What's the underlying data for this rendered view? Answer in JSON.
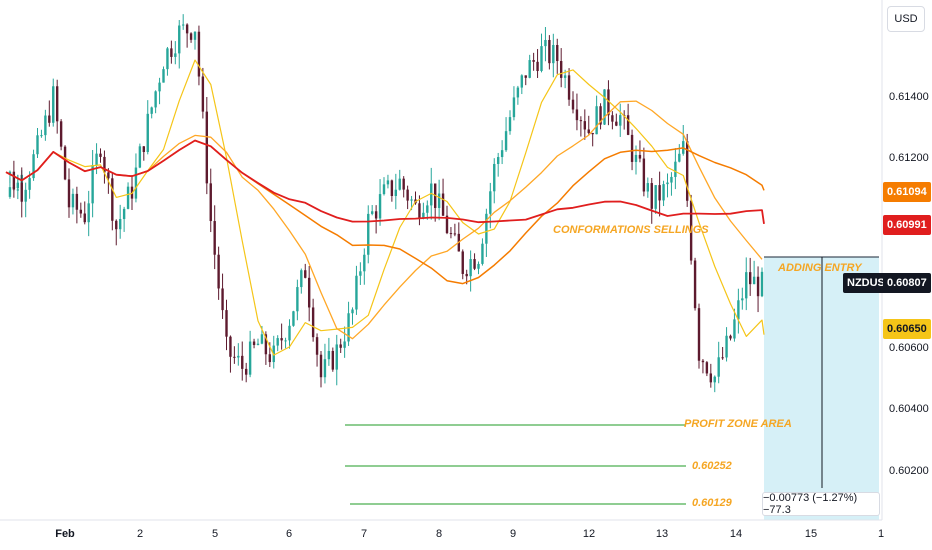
{
  "currency": "USD",
  "y_ticks": [
    "0.61400",
    "0.61200",
    "0.60600",
    "0.60400",
    "0.60200"
  ],
  "x_ticks": [
    "Feb",
    "2",
    "5",
    "6",
    "7",
    "8",
    "9",
    "12",
    "13",
    "14",
    "15",
    "1"
  ],
  "price_tags": {
    "ma_orange": "0.61094",
    "ma_red": "0.60991",
    "current": "0.60807",
    "ma_yellow": "0.60650",
    "symbol": "NZDUSD"
  },
  "annotations": {
    "conformations": "CONFORMATIONS SELLINGS",
    "adding_entry": "ADDING ENTRY",
    "profit_zone": "PROFIT ZONE AREA",
    "target1": "0.60252",
    "target2": "0.60129"
  },
  "position_stats": "−0.00773 (−1.27%) −77.3",
  "colors": {
    "up": "#26a69a",
    "down": "#5d1a2e",
    "ma_yellow": "#f5c518",
    "ma_orange": "#f57c00",
    "ma_red": "#e01e1e",
    "ma_light": "#ffa726",
    "zone": "#d6f0f7",
    "target_line": "#4caf50"
  },
  "chart_data": {
    "type": "candlestick",
    "symbol": "NZDUSD",
    "y_range": [
      0.6008,
      0.6168
    ],
    "x_categories": [
      "Feb",
      "2",
      "5",
      "6",
      "7",
      "8",
      "9",
      "12",
      "13",
      "14",
      "15",
      "1"
    ],
    "closes": [
      0.6115,
      0.611,
      0.6122,
      0.6138,
      0.6105,
      0.6102,
      0.6124,
      0.6098,
      0.611,
      0.613,
      0.615,
      0.6158,
      0.616,
      0.61,
      0.606,
      0.6055,
      0.6062,
      0.6058,
      0.607,
      0.6085,
      0.6052,
      0.606,
      0.6072,
      0.61,
      0.6108,
      0.6112,
      0.6104,
      0.611,
      0.6098,
      0.6086,
      0.609,
      0.6116,
      0.6132,
      0.6146,
      0.6152,
      0.615,
      0.6138,
      0.6128,
      0.6136,
      0.6132,
      0.6118,
      0.6106,
      0.611,
      0.6122,
      0.606,
      0.6052,
      0.6064,
      0.6082,
      0.608
    ],
    "ma_levels": {
      "orange": 0.61094,
      "red": 0.60991,
      "yellow": 0.6065
    },
    "current_price": 0.60807,
    "targets": [
      0.60252,
      0.60129
    ]
  }
}
